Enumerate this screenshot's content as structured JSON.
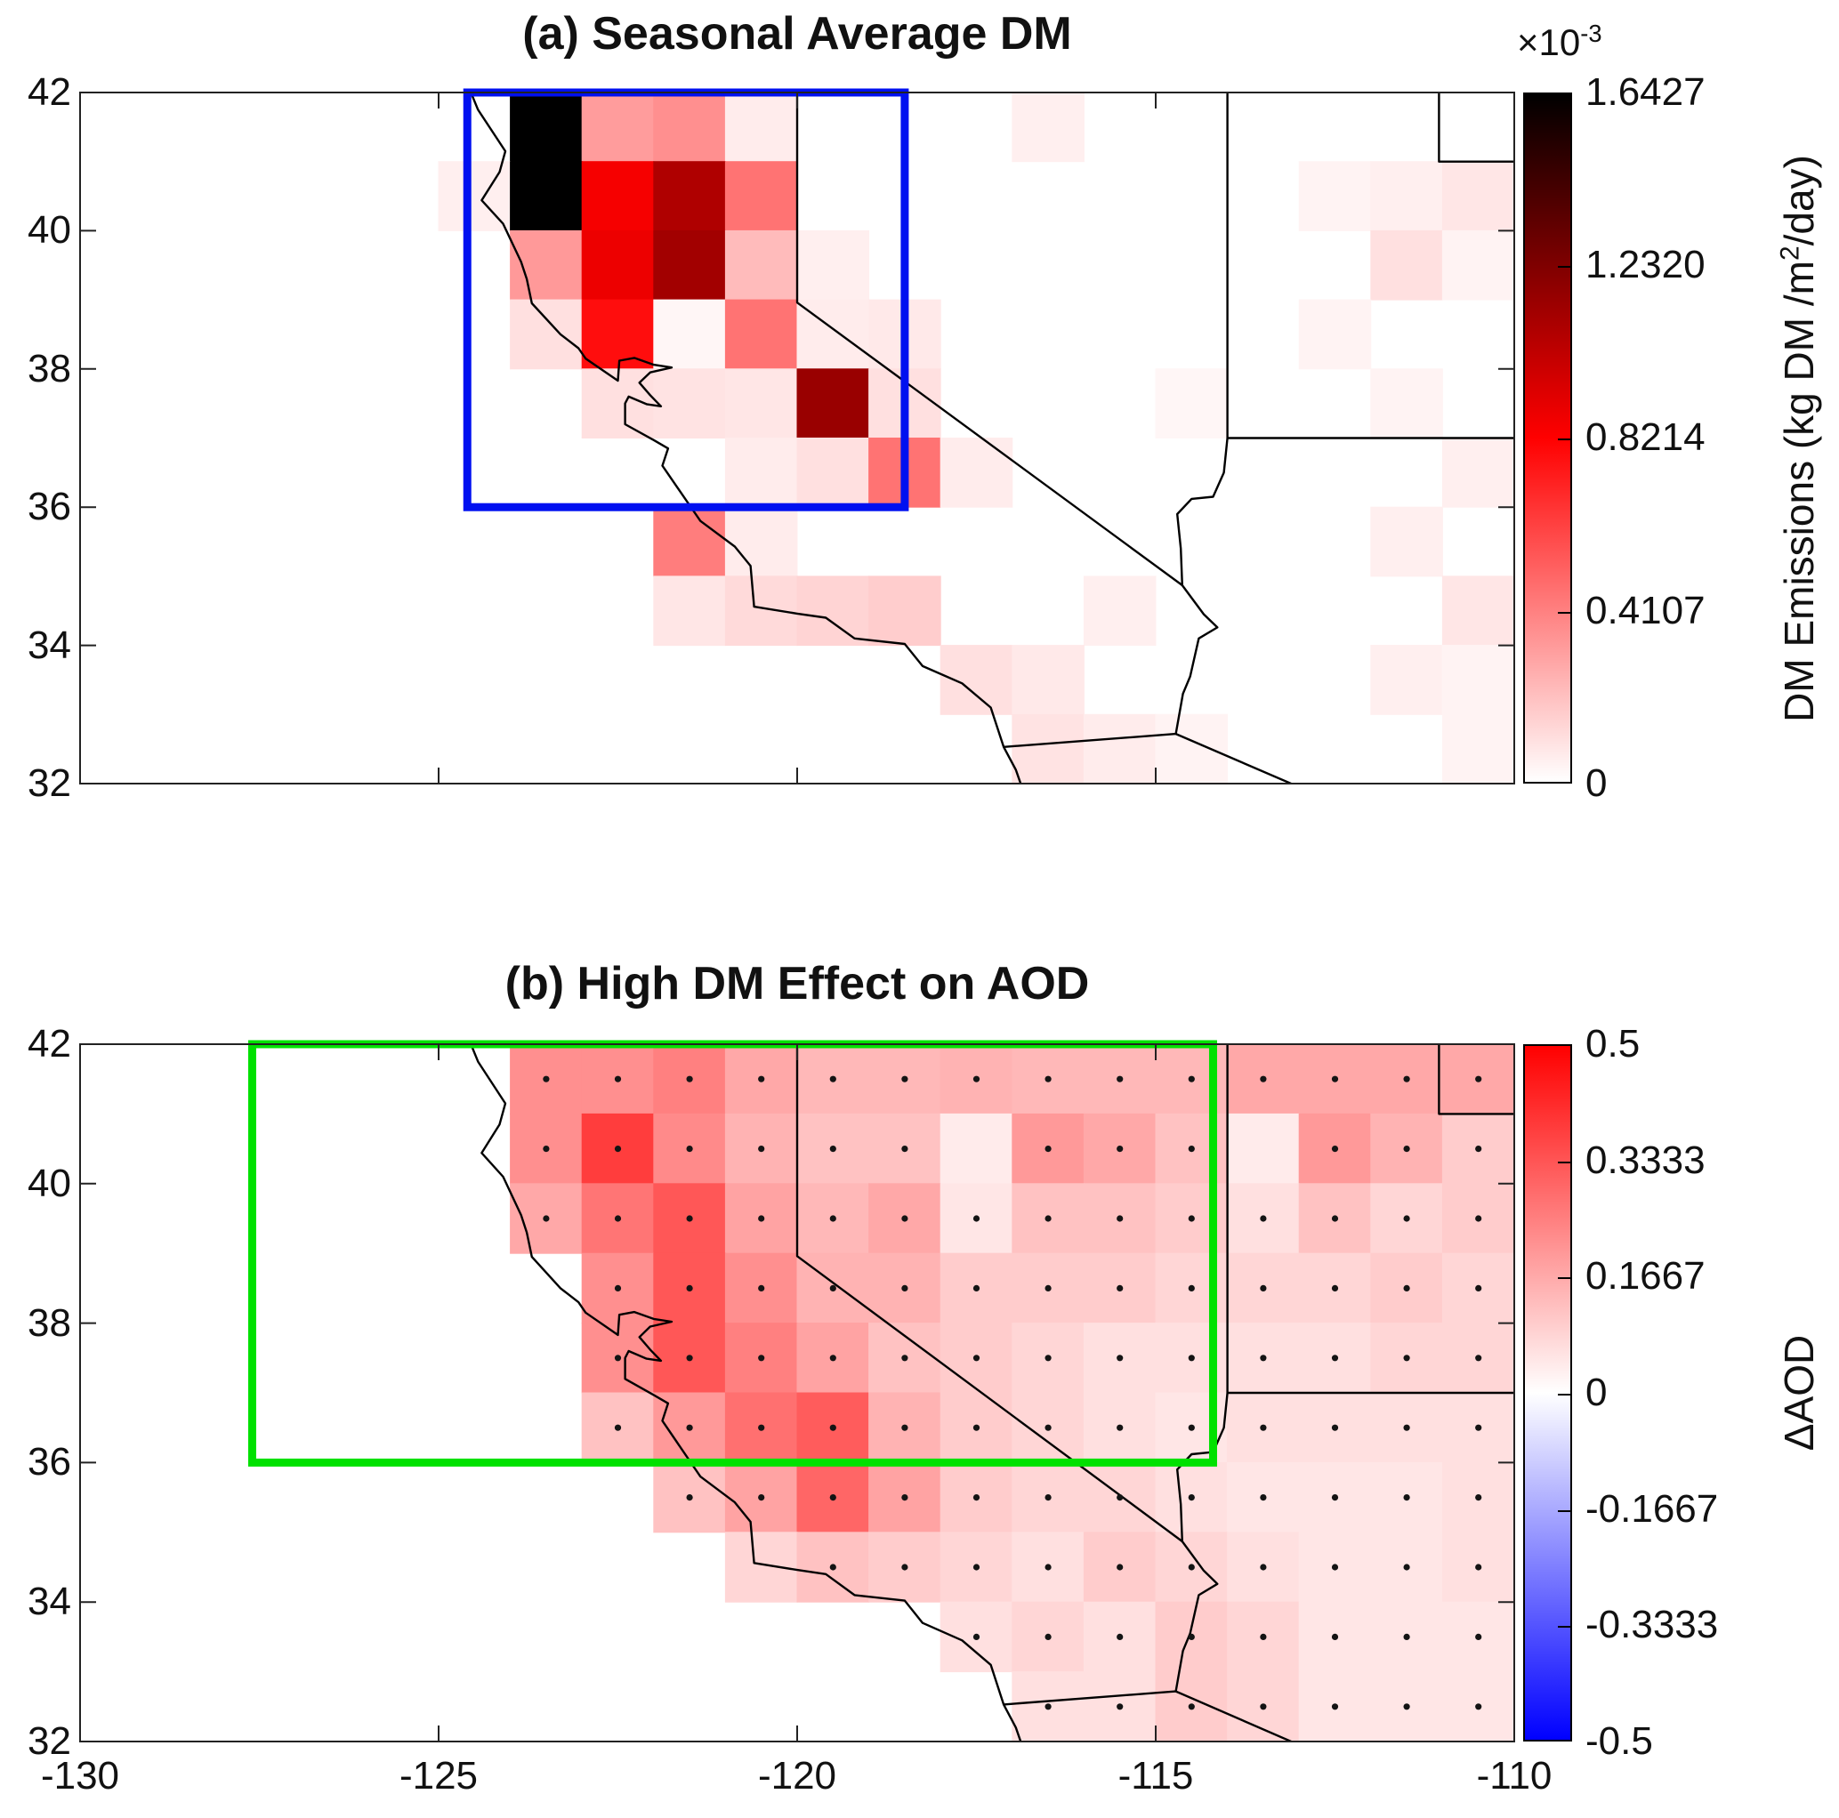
{
  "chart_data": [
    {
      "type": "heatmap",
      "panel": "a",
      "title": "(a) Seasonal Average DM",
      "x": {
        "range": [
          -130,
          -110
        ],
        "ticks": [
          -130,
          -125,
          -120,
          -115,
          -110
        ],
        "show_tick_labels": false
      },
      "y": {
        "range": [
          32,
          42
        ],
        "ticks": [
          42,
          40,
          38,
          36,
          34,
          32
        ]
      },
      "cell_size_deg": 1,
      "colormap": "white-red-black",
      "value_units": "1e-3 kg DM/m2/day",
      "colorbar": {
        "scale_pre": "×10",
        "scale_sup": "-3",
        "tick_labels": [
          "1.6427",
          "1.2320",
          "0.8214",
          "0.4107",
          "0"
        ],
        "tick_values": [
          1.6427,
          1.232,
          0.8214,
          0.4107,
          0
        ],
        "vmin": 0,
        "vmax": 1.6427,
        "gradient": [
          "#ffffff",
          "#ff0000",
          "#000000"
        ],
        "label_pre": "DM Emissions (kg DM /m",
        "label_sup": "2",
        "label_post": "/day)"
      },
      "region_box": {
        "color": "#0010f0",
        "lon_min": -124.6,
        "lon_max": -118.5,
        "lat_min": 36,
        "lat_max": 42
      },
      "cells": [
        [
          -124,
          41,
          1.6427
        ],
        [
          -123,
          41,
          0.32
        ],
        [
          -122,
          41,
          0.36
        ],
        [
          -121,
          41,
          0.06
        ],
        [
          -117,
          41,
          0.05
        ],
        [
          -125,
          40,
          0.05
        ],
        [
          -124,
          40,
          1.6427
        ],
        [
          -123,
          40,
          0.85
        ],
        [
          -122,
          40,
          1.08
        ],
        [
          -121,
          40,
          0.45
        ],
        [
          -113,
          40,
          0.04
        ],
        [
          -112,
          40,
          0.05
        ],
        [
          -111,
          40,
          0.08
        ],
        [
          -124,
          39,
          0.33
        ],
        [
          -123,
          39,
          0.88
        ],
        [
          -122,
          39,
          1.12
        ],
        [
          -121,
          39,
          0.22
        ],
        [
          -120,
          39,
          0.05
        ],
        [
          -112,
          39,
          0.1
        ],
        [
          -111,
          39,
          0.04
        ],
        [
          -124,
          38,
          0.1
        ],
        [
          -123,
          38,
          0.78
        ],
        [
          -122,
          38,
          0.03
        ],
        [
          -121,
          38,
          0.45
        ],
        [
          -120,
          38,
          0.06
        ],
        [
          -119,
          38,
          0.07
        ],
        [
          -113,
          38,
          0.04
        ],
        [
          -123,
          37,
          0.1
        ],
        [
          -122,
          37,
          0.09
        ],
        [
          -121,
          37,
          0.08
        ],
        [
          -120,
          37,
          1.15
        ],
        [
          -119,
          37,
          0.1
        ],
        [
          -115,
          37,
          0.03
        ],
        [
          -112,
          37,
          0.04
        ],
        [
          -121,
          36,
          0.06
        ],
        [
          -120,
          36,
          0.1
        ],
        [
          -119,
          36,
          0.45
        ],
        [
          -118,
          36,
          0.06
        ],
        [
          -111,
          36,
          0.05
        ],
        [
          -122,
          35,
          0.42
        ],
        [
          -121,
          35,
          0.06
        ],
        [
          -112,
          35,
          0.05
        ],
        [
          -122,
          34,
          0.08
        ],
        [
          -121,
          34,
          0.12
        ],
        [
          -120,
          34,
          0.14
        ],
        [
          -119,
          34,
          0.16
        ],
        [
          -116,
          34,
          0.05
        ],
        [
          -111,
          34,
          0.08
        ],
        [
          -118,
          33,
          0.1
        ],
        [
          -117,
          33,
          0.07
        ],
        [
          -112,
          33,
          0.05
        ],
        [
          -111,
          33,
          0.04
        ],
        [
          -117,
          32,
          0.09
        ],
        [
          -116,
          32,
          0.06
        ],
        [
          -115,
          32,
          0.04
        ],
        [
          -111,
          32,
          0.04
        ]
      ]
    },
    {
      "type": "heatmap",
      "panel": "b",
      "title": "(b) High DM Effect on AOD",
      "x": {
        "range": [
          -130,
          -110
        ],
        "ticks": [
          -130,
          -125,
          -120,
          -115,
          -110
        ],
        "show_tick_labels": true,
        "tick_labels": [
          "-130",
          "-125",
          "-120",
          "-115",
          "-110"
        ]
      },
      "y": {
        "range": [
          32,
          42
        ],
        "ticks": [
          42,
          40,
          38,
          36,
          34,
          32
        ]
      },
      "cell_size_deg": 1,
      "colormap": "blue-white-red",
      "value_units": "AOD difference",
      "stipple_note": "black dot = stippled cell",
      "colorbar": {
        "tick_labels": [
          "0.5",
          "0.3333",
          "0.1667",
          "0",
          "-0.1667",
          "-0.3333",
          "-0.5"
        ],
        "tick_values": [
          0.5,
          0.3333,
          0.1667,
          0,
          -0.1667,
          -0.3333,
          -0.5
        ],
        "vmin": -0.5,
        "vmax": 0.5,
        "gradient": [
          "#0000ff",
          "#ffffff",
          "#ff0000"
        ],
        "label": "ΔAOD"
      },
      "region_box": {
        "color": "#00e100",
        "lon_min": -127.6,
        "lon_max": -114.2,
        "lat_min": 36,
        "lat_max": 42
      },
      "cells": [
        [
          -124,
          41,
          0.22,
          1
        ],
        [
          -123,
          41,
          0.22,
          1
        ],
        [
          -122,
          41,
          0.25,
          1
        ],
        [
          -121,
          41,
          0.17,
          1
        ],
        [
          -120,
          41,
          0.14,
          1
        ],
        [
          -119,
          41,
          0.14,
          1
        ],
        [
          -118,
          41,
          0.15,
          1
        ],
        [
          -117,
          41,
          0.14,
          1
        ],
        [
          -116,
          41,
          0.14,
          1
        ],
        [
          -115,
          41,
          0.14,
          1
        ],
        [
          -114,
          41,
          0.17,
          1
        ],
        [
          -113,
          41,
          0.17,
          1
        ],
        [
          -112,
          41,
          0.17,
          1
        ],
        [
          -111,
          41,
          0.17,
          1
        ],
        [
          -124,
          40,
          0.22,
          1
        ],
        [
          -123,
          40,
          0.38,
          1
        ],
        [
          -122,
          40,
          0.23,
          1
        ],
        [
          -121,
          40,
          0.15,
          1
        ],
        [
          -120,
          40,
          0.12,
          1
        ],
        [
          -119,
          40,
          0.12,
          1
        ],
        [
          -118,
          40,
          0.04,
          0
        ],
        [
          -117,
          40,
          0.2,
          1
        ],
        [
          -116,
          40,
          0.17,
          1
        ],
        [
          -115,
          40,
          0.12,
          1
        ],
        [
          -114,
          40,
          0.04,
          0
        ],
        [
          -113,
          40,
          0.2,
          1
        ],
        [
          -112,
          40,
          0.15,
          1
        ],
        [
          -111,
          40,
          0.1,
          1
        ],
        [
          -124,
          39,
          0.17,
          1
        ],
        [
          -123,
          39,
          0.27,
          1
        ],
        [
          -122,
          39,
          0.33,
          1
        ],
        [
          -121,
          39,
          0.18,
          1
        ],
        [
          -120,
          39,
          0.14,
          1
        ],
        [
          -119,
          39,
          0.17,
          1
        ],
        [
          -118,
          39,
          0.05,
          1
        ],
        [
          -117,
          39,
          0.12,
          1
        ],
        [
          -116,
          39,
          0.12,
          1
        ],
        [
          -115,
          39,
          0.1,
          1
        ],
        [
          -114,
          39,
          0.06,
          1
        ],
        [
          -113,
          39,
          0.12,
          1
        ],
        [
          -112,
          39,
          0.08,
          1
        ],
        [
          -111,
          39,
          0.1,
          1
        ],
        [
          -123,
          38,
          0.22,
          1
        ],
        [
          -122,
          38,
          0.33,
          1
        ],
        [
          -121,
          38,
          0.22,
          1
        ],
        [
          -120,
          38,
          0.15,
          1
        ],
        [
          -119,
          38,
          0.15,
          1
        ],
        [
          -118,
          38,
          0.1,
          1
        ],
        [
          -117,
          38,
          0.1,
          1
        ],
        [
          -116,
          38,
          0.1,
          1
        ],
        [
          -115,
          38,
          0.08,
          1
        ],
        [
          -114,
          38,
          0.08,
          1
        ],
        [
          -113,
          38,
          0.08,
          1
        ],
        [
          -112,
          38,
          0.1,
          1
        ],
        [
          -111,
          38,
          0.08,
          1
        ],
        [
          -123,
          37,
          0.22,
          1
        ],
        [
          -122,
          37,
          0.33,
          1
        ],
        [
          -121,
          37,
          0.25,
          1
        ],
        [
          -120,
          37,
          0.18,
          1
        ],
        [
          -119,
          37,
          0.12,
          1
        ],
        [
          -118,
          37,
          0.1,
          1
        ],
        [
          -117,
          37,
          0.08,
          1
        ],
        [
          -116,
          37,
          0.06,
          1
        ],
        [
          -115,
          37,
          0.06,
          1
        ],
        [
          -114,
          37,
          0.06,
          1
        ],
        [
          -113,
          37,
          0.06,
          1
        ],
        [
          -112,
          37,
          0.08,
          1
        ],
        [
          -111,
          37,
          0.08,
          1
        ],
        [
          -123,
          36,
          0.12,
          1
        ],
        [
          -122,
          36,
          0.2,
          1
        ],
        [
          -121,
          36,
          0.28,
          1
        ],
        [
          -120,
          36,
          0.32,
          1
        ],
        [
          -119,
          36,
          0.15,
          1
        ],
        [
          -118,
          36,
          0.1,
          1
        ],
        [
          -117,
          36,
          0.08,
          1
        ],
        [
          -116,
          36,
          0.06,
          1
        ],
        [
          -115,
          36,
          0.05,
          1
        ],
        [
          -114,
          36,
          0.06,
          1
        ],
        [
          -113,
          36,
          0.06,
          1
        ],
        [
          -112,
          36,
          0.06,
          1
        ],
        [
          -111,
          36,
          0.06,
          1
        ],
        [
          -122,
          35,
          0.12,
          1
        ],
        [
          -121,
          35,
          0.18,
          1
        ],
        [
          -120,
          35,
          0.3,
          1
        ],
        [
          -119,
          35,
          0.18,
          1
        ],
        [
          -118,
          35,
          0.1,
          1
        ],
        [
          -117,
          35,
          0.08,
          1
        ],
        [
          -116,
          35,
          0.08,
          1
        ],
        [
          -115,
          35,
          0.06,
          1
        ],
        [
          -114,
          35,
          0.05,
          1
        ],
        [
          -113,
          35,
          0.05,
          1
        ],
        [
          -112,
          35,
          0.05,
          1
        ],
        [
          -111,
          35,
          0.06,
          1
        ],
        [
          -121,
          34,
          0.08,
          0
        ],
        [
          -120,
          34,
          0.12,
          1
        ],
        [
          -119,
          34,
          0.1,
          1
        ],
        [
          -118,
          34,
          0.08,
          1
        ],
        [
          -117,
          34,
          0.06,
          1
        ],
        [
          -116,
          34,
          0.1,
          1
        ],
        [
          -115,
          34,
          0.08,
          1
        ],
        [
          -114,
          34,
          0.06,
          1
        ],
        [
          -113,
          34,
          0.05,
          1
        ],
        [
          -112,
          34,
          0.05,
          1
        ],
        [
          -111,
          34,
          0.06,
          1
        ],
        [
          -118,
          33,
          0.06,
          1
        ],
        [
          -117,
          33,
          0.08,
          1
        ],
        [
          -116,
          33,
          0.06,
          1
        ],
        [
          -115,
          33,
          0.1,
          1
        ],
        [
          -114,
          33,
          0.08,
          1
        ],
        [
          -113,
          33,
          0.05,
          1
        ],
        [
          -112,
          33,
          0.05,
          1
        ],
        [
          -111,
          33,
          0.05,
          1
        ],
        [
          -117,
          32,
          0.06,
          1
        ],
        [
          -116,
          32,
          0.06,
          1
        ],
        [
          -115,
          32,
          0.1,
          1
        ],
        [
          -114,
          32,
          0.08,
          1
        ],
        [
          -113,
          32,
          0.05,
          1
        ],
        [
          -112,
          32,
          0.05,
          1
        ],
        [
          -111,
          32,
          0.05,
          1
        ]
      ]
    }
  ]
}
